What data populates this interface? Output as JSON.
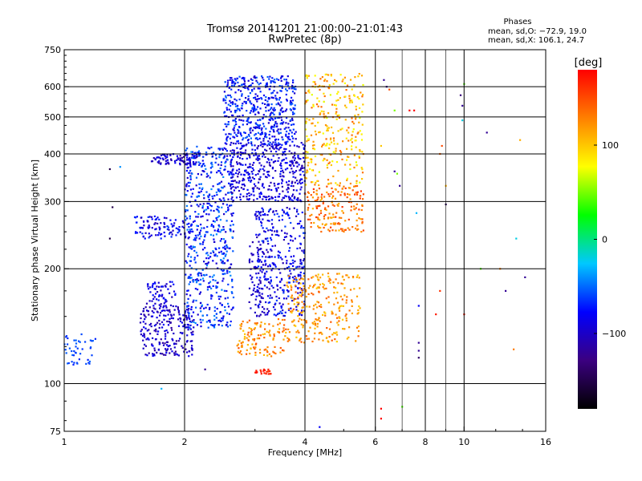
{
  "header": {
    "title_line1": "Tromsø 20141201 21:00:00–21:01:43",
    "title_line2": "RwPretec (8p)"
  },
  "stats": {
    "heading": "Phases",
    "line1": "mean, sd,O: −72.9, 19.0",
    "line2": "mean, sd,X: 106.1, 24.7"
  },
  "colorbar": {
    "label": "[deg]",
    "ticks": [
      "100",
      "0",
      "−100"
    ],
    "tick_values": [
      100,
      0,
      -100
    ],
    "range": [
      -180,
      180
    ],
    "colormap": "rainbow",
    "stops": [
      "#000000",
      "#3b0080",
      "#0000ff",
      "#00c8ff",
      "#00ff00",
      "#ffff00",
      "#ff8000",
      "#ff0000"
    ]
  },
  "chart_data": {
    "type": "scatter",
    "title": "Tromsø 20141201 21:00:00–21:01:43",
    "subtitle": "RwPretec (8p)",
    "xlabel": "Frequency [MHz]",
    "ylabel": "Stationary phase Virtual Height [km]",
    "xscale": "log",
    "yscale": "log",
    "xlim": [
      1,
      16
    ],
    "ylim": [
      75,
      750
    ],
    "xticks": [
      1,
      2,
      4,
      6,
      8,
      10,
      16
    ],
    "xtick_labels": [
      "1",
      "2",
      "4",
      "6",
      "8",
      "10",
      "16"
    ],
    "xgrid": [
      2,
      4,
      6,
      8,
      10
    ],
    "xminor": [
      7,
      9
    ],
    "yticks": [
      75,
      100,
      200,
      300,
      400,
      500,
      600,
      750
    ],
    "ytick_labels": [
      "75",
      "100",
      "200",
      "300",
      "400",
      "500",
      "600",
      "750"
    ],
    "ygrid": [
      100,
      200,
      300,
      400,
      500,
      600
    ],
    "grid": true,
    "color_meaning": "phase in degrees",
    "clusters": [
      {
        "x": [
          1.0,
          1.2
        ],
        "y": [
          112,
          135
        ],
        "phase": [
          -70,
          -50
        ],
        "n": 45
      },
      {
        "x": [
          1.55,
          2.1
        ],
        "y": [
          118,
          160
        ],
        "phase": [
          -120,
          -80
        ],
        "n": 230
      },
      {
        "x": [
          1.6,
          1.9
        ],
        "y": [
          160,
          185
        ],
        "phase": [
          -110,
          -70
        ],
        "n": 60
      },
      {
        "x": [
          1.5,
          2.2
        ],
        "y": [
          240,
          275
        ],
        "phase": [
          -110,
          -60
        ],
        "n": 120
      },
      {
        "x": [
          1.65,
          2.15
        ],
        "y": [
          375,
          400
        ],
        "phase": [
          -120,
          -80
        ],
        "n": 90
      },
      {
        "x": [
          2.0,
          2.65
        ],
        "y": [
          140,
          420
        ],
        "phase": [
          -100,
          -40
        ],
        "n": 600
      },
      {
        "x": [
          2.5,
          3.8
        ],
        "y": [
          420,
          640
        ],
        "phase": [
          -100,
          -50
        ],
        "n": 520
      },
      {
        "x": [
          2.6,
          4.0
        ],
        "y": [
          300,
          430
        ],
        "phase": [
          -115,
          -70
        ],
        "n": 420
      },
      {
        "x": [
          3.0,
          4.0
        ],
        "y": [
          150,
          290
        ],
        "phase": [
          -110,
          -60
        ],
        "n": 360
      },
      {
        "x": [
          2.7,
          3.6
        ],
        "y": [
          118,
          148
        ],
        "phase": [
          100,
          150
        ],
        "n": 120
      },
      {
        "x": [
          3.6,
          5.5
        ],
        "y": [
          128,
          195
        ],
        "phase": [
          95,
          145
        ],
        "n": 260
      },
      {
        "x": [
          4.0,
          5.6
        ],
        "y": [
          250,
          330
        ],
        "phase": [
          105,
          160
        ],
        "n": 180
      },
      {
        "x": [
          4.0,
          5.6
        ],
        "y": [
          330,
          650
        ],
        "phase": [
          70,
          140
        ],
        "n": 300
      },
      {
        "x": [
          3.0,
          3.3
        ],
        "y": [
          106,
          109
        ],
        "phase": [
          160,
          175
        ],
        "n": 20
      },
      {
        "x": [
          2.9,
          3.2
        ],
        "y": [
          150,
          240
        ],
        "phase": [
          -110,
          -90
        ],
        "n": 60
      }
    ],
    "points": [
      {
        "x": 1.3,
        "y": 365,
        "phase": -150
      },
      {
        "x": 1.32,
        "y": 290,
        "phase": -150
      },
      {
        "x": 1.3,
        "y": 240,
        "phase": -150
      },
      {
        "x": 1.38,
        "y": 370,
        "phase": -40
      },
      {
        "x": 1.75,
        "y": 97,
        "phase": -30
      },
      {
        "x": 2.25,
        "y": 109,
        "phase": -120
      },
      {
        "x": 6.3,
        "y": 625,
        "phase": -120
      },
      {
        "x": 6.4,
        "y": 600,
        "phase": -120
      },
      {
        "x": 6.5,
        "y": 590,
        "phase": 150
      },
      {
        "x": 6.7,
        "y": 520,
        "phase": 50
      },
      {
        "x": 7.3,
        "y": 520,
        "phase": 180
      },
      {
        "x": 7.5,
        "y": 520,
        "phase": 180
      },
      {
        "x": 6.7,
        "y": 360,
        "phase": -120
      },
      {
        "x": 6.9,
        "y": 330,
        "phase": -120
      },
      {
        "x": 6.2,
        "y": 420,
        "phase": 100
      },
      {
        "x": 6.2,
        "y": 86,
        "phase": 180
      },
      {
        "x": 6.2,
        "y": 81,
        "phase": 180
      },
      {
        "x": 7.0,
        "y": 87,
        "phase": 40
      },
      {
        "x": 7.7,
        "y": 160,
        "phase": -80
      },
      {
        "x": 7.7,
        "y": 128,
        "phase": -120
      },
      {
        "x": 7.7,
        "y": 122,
        "phase": -120
      },
      {
        "x": 7.7,
        "y": 117,
        "phase": -140
      },
      {
        "x": 7.6,
        "y": 280,
        "phase": -30
      },
      {
        "x": 8.7,
        "y": 175,
        "phase": 160
      },
      {
        "x": 8.5,
        "y": 152,
        "phase": 170
      },
      {
        "x": 8.7,
        "y": 400,
        "phase": 140
      },
      {
        "x": 8.8,
        "y": 420,
        "phase": 150
      },
      {
        "x": 9.0,
        "y": 330,
        "phase": 110
      },
      {
        "x": 9.0,
        "y": 295,
        "phase": -150
      },
      {
        "x": 9.8,
        "y": 570,
        "phase": -130
      },
      {
        "x": 9.9,
        "y": 535,
        "phase": -120
      },
      {
        "x": 9.9,
        "y": 490,
        "phase": -20
      },
      {
        "x": 10.0,
        "y": 610,
        "phase": 40
      },
      {
        "x": 10.0,
        "y": 152,
        "phase": 170
      },
      {
        "x": 11.4,
        "y": 455,
        "phase": -120
      },
      {
        "x": 12.3,
        "y": 200,
        "phase": 130
      },
      {
        "x": 12.7,
        "y": 175,
        "phase": -120
      },
      {
        "x": 13.3,
        "y": 123,
        "phase": 130
      },
      {
        "x": 13.5,
        "y": 240,
        "phase": -20
      },
      {
        "x": 13.8,
        "y": 435,
        "phase": 110
      },
      {
        "x": 14.2,
        "y": 190,
        "phase": -120
      },
      {
        "x": 11.0,
        "y": 200,
        "phase": 40
      },
      {
        "x": 6.8,
        "y": 355,
        "phase": 50
      },
      {
        "x": 4.35,
        "y": 77,
        "phase": -80
      }
    ]
  }
}
